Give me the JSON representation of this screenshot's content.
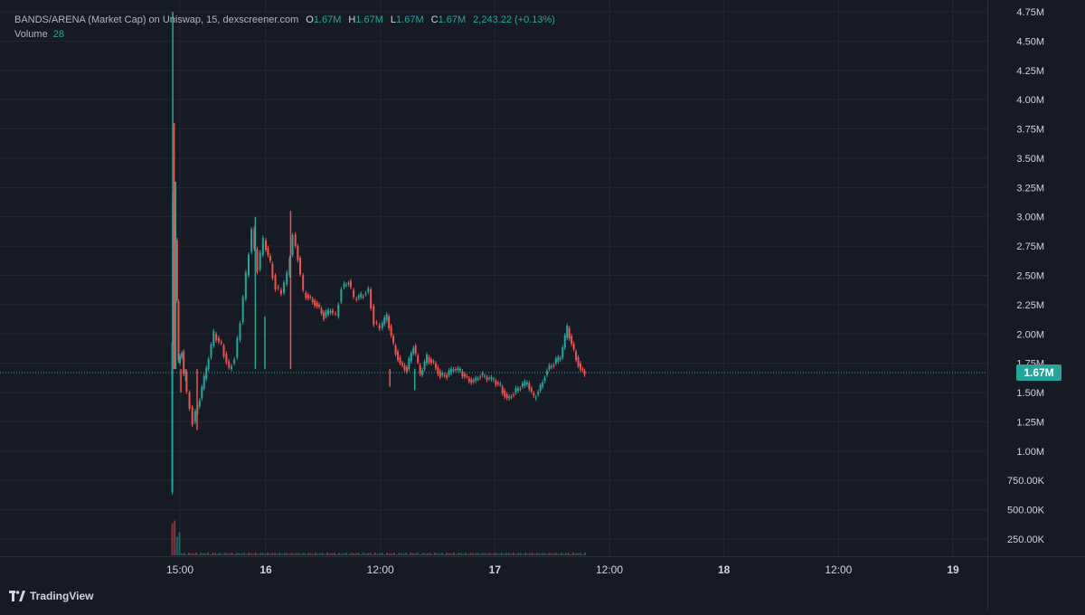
{
  "legend": {
    "title": "BANDS/ARENA (Market Cap) on Uniswap, 15, dexscreener.com",
    "o_label": "O",
    "o_value": "1.67M",
    "h_label": "H",
    "h_value": "1.67M",
    "l_label": "L",
    "l_value": "1.67M",
    "c_label": "C",
    "c_value": "1.67M",
    "change": "2,243.22 (+0.13%)",
    "volume_label": "Volume",
    "volume_value": "28"
  },
  "price_tag": "1.67M",
  "branding": "TradingView",
  "colors": {
    "background": "#161a25",
    "up": "#26a69a",
    "down": "#ef5350",
    "grid": "#232632",
    "text": "#d1d4dc"
  },
  "chart_data": {
    "type": "candlestick",
    "interval": "15",
    "y_axis": {
      "ticks": [
        250000,
        500000,
        750000,
        1000000,
        1250000,
        1500000,
        1750000,
        2000000,
        2250000,
        2500000,
        2750000,
        3000000,
        3250000,
        3500000,
        3750000,
        4000000,
        4250000,
        4500000,
        4750000
      ],
      "tick_labels": [
        "250.00K",
        "500.00K",
        "750.00K",
        "1.00M",
        "1.25M",
        "1.50M",
        "1.75M",
        "2.00M",
        "2.25M",
        "2.50M",
        "2.75M",
        "3.00M",
        "3.25M",
        "3.50M",
        "3.75M",
        "4.00M",
        "4.25M",
        "4.50M",
        "4.75M"
      ],
      "position": "right"
    },
    "x_axis": {
      "ticks": [
        15,
        24,
        36,
        48,
        60,
        72,
        84,
        96
      ],
      "tick_labels": [
        "15:00",
        "16",
        "12:00",
        "17",
        "12:00",
        "18",
        "12:00",
        "19"
      ],
      "unit": "hours from day 15 00:00"
    },
    "grid": true,
    "last_price": 1670000,
    "series": [
      {
        "name": "Market Cap",
        "x_range_hours": [
          14.2,
          89.8
        ],
        "path": [
          [
            14.2,
            650000
          ],
          [
            14.35,
            3200000
          ],
          [
            14.7,
            2800000
          ],
          [
            15.0,
            1750000
          ],
          [
            15.4,
            1850000
          ],
          [
            16.0,
            1500000
          ],
          [
            16.6,
            1250000
          ],
          [
            17.3,
            1450000
          ],
          [
            18.0,
            1700000
          ],
          [
            18.8,
            2000000
          ],
          [
            19.6,
            1900000
          ],
          [
            20.4,
            1700000
          ],
          [
            21.0,
            1800000
          ],
          [
            21.6,
            2100000
          ],
          [
            22.2,
            2500000
          ],
          [
            22.8,
            2900000
          ],
          [
            23.4,
            2550000
          ],
          [
            24.0,
            2800000
          ],
          [
            24.7,
            2600000
          ],
          [
            25.3,
            2400000
          ],
          [
            25.9,
            2350000
          ],
          [
            26.5,
            2500000
          ],
          [
            27.1,
            2850000
          ],
          [
            27.6,
            2650000
          ],
          [
            28.2,
            2350000
          ],
          [
            28.9,
            2300000
          ],
          [
            29.6,
            2250000
          ],
          [
            30.3,
            2150000
          ],
          [
            31.0,
            2200000
          ],
          [
            31.6,
            2150000
          ],
          [
            32.2,
            2400000
          ],
          [
            32.9,
            2450000
          ],
          [
            33.5,
            2300000
          ],
          [
            34.2,
            2320000
          ],
          [
            35.0,
            2380000
          ],
          [
            35.6,
            2100000
          ],
          [
            36.2,
            2050000
          ],
          [
            36.9,
            2150000
          ],
          [
            37.6,
            1900000
          ],
          [
            38.3,
            1750000
          ],
          [
            39.0,
            1700000
          ],
          [
            39.7,
            1900000
          ],
          [
            40.4,
            1650000
          ],
          [
            41.1,
            1800000
          ],
          [
            41.8,
            1750000
          ],
          [
            42.5,
            1650000
          ],
          [
            43.2,
            1650000
          ],
          [
            43.9,
            1700000
          ],
          [
            44.6,
            1680000
          ],
          [
            45.3,
            1620000
          ],
          [
            46.0,
            1600000
          ],
          [
            46.7,
            1650000
          ],
          [
            47.4,
            1620000
          ],
          [
            48.1,
            1600000
          ],
          [
            48.8,
            1550000
          ],
          [
            49.5,
            1450000
          ],
          [
            50.2,
            1500000
          ],
          [
            50.9,
            1550000
          ],
          [
            51.6,
            1580000
          ],
          [
            52.3,
            1450000
          ],
          [
            53.0,
            1550000
          ],
          [
            53.7,
            1700000
          ],
          [
            54.4,
            1750000
          ],
          [
            55.1,
            1800000
          ],
          [
            55.8,
            2050000
          ],
          [
            56.5,
            1850000
          ],
          [
            57.2,
            1700000
          ],
          [
            57.6,
            1670000
          ]
        ],
        "spikes": [
          [
            14.25,
            4750000
          ],
          [
            14.4,
            3800000
          ],
          [
            14.55,
            3300000
          ],
          [
            15.1,
            1500000
          ],
          [
            15.6,
            1600000
          ],
          [
            16.8,
            1180000
          ],
          [
            22.9,
            3000000
          ],
          [
            26.6,
            3050000
          ],
          [
            23.9,
            2150000
          ],
          [
            37.0,
            1550000
          ],
          [
            39.6,
            1520000
          ]
        ]
      }
    ],
    "volume": {
      "name": "Volume",
      "last": 28
    }
  }
}
